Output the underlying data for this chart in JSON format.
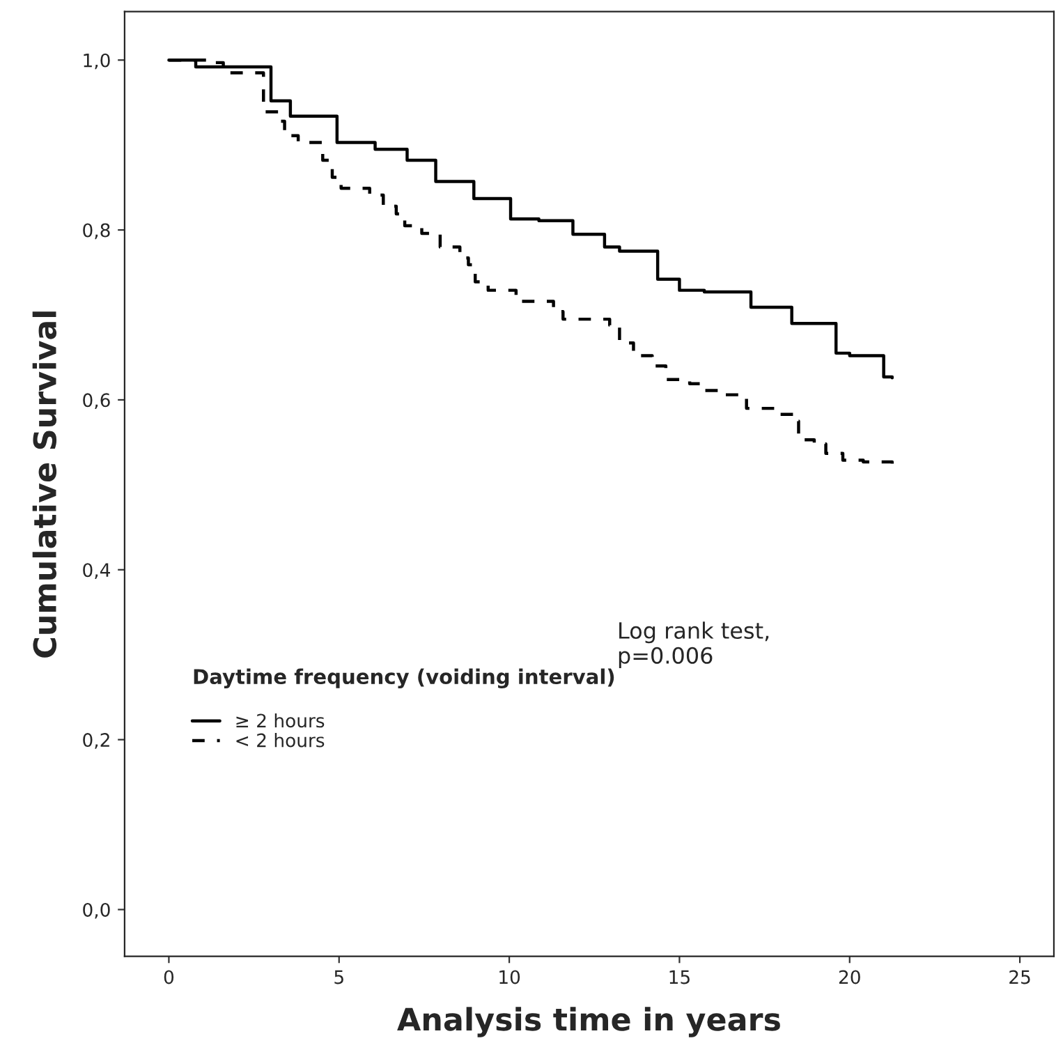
{
  "chart_data": {
    "type": "step",
    "xlabel": "Analysis time in years",
    "ylabel": "Cumulative Survival",
    "legend_title": "Daytime frequency (voiding interval)",
    "legend": "bottom left",
    "grid": false,
    "xlim": [
      -1.3,
      26.0
    ],
    "xticks": [
      0,
      5,
      10,
      15,
      20,
      25
    ],
    "ylim": [
      -0.055,
      1.057
    ],
    "yticks": [
      {
        "value": 0,
        "label": "0,0"
      },
      {
        "value": 0.2,
        "label": "0,2"
      },
      {
        "value": 0.4,
        "label": "0,4"
      },
      {
        "value": 0.6,
        "label": "0,6"
      },
      {
        "value": 0.8,
        "label": "0,8"
      },
      {
        "value": 1.0,
        "label": "1,0"
      }
    ],
    "annotations": [
      "Log rank test,\np=0.006"
    ],
    "series": [
      {
        "name": "≥ 2 hours",
        "color": "#000000",
        "line_style": "solid",
        "x": [
          0,
          0.79,
          3.0,
          3.57,
          4.94,
          6.06,
          7.0,
          7.84,
          8.96,
          10.04,
          10.87,
          11.87,
          12.8,
          13.24,
          14.36,
          15.0,
          15.73,
          17.1,
          18.3,
          19.6,
          20.0,
          21.0,
          21.25
        ],
        "values": [
          1.0,
          0.992,
          0.952,
          0.934,
          0.903,
          0.895,
          0.882,
          0.857,
          0.837,
          0.813,
          0.811,
          0.795,
          0.78,
          0.775,
          0.742,
          0.729,
          0.727,
          0.709,
          0.69,
          0.655,
          0.652,
          0.627,
          0.626
        ]
      },
      {
        "name": "< 2 hours",
        "color": "#000000",
        "line_style": "dashed",
        "x": [
          0,
          1.2,
          1.6,
          2.78,
          3.28,
          3.4,
          3.8,
          4.52,
          4.8,
          5.06,
          5.9,
          6.3,
          6.68,
          6.93,
          7.43,
          7.97,
          8.55,
          8.8,
          9.0,
          9.38,
          10.2,
          11.3,
          11.58,
          12.95,
          13.24,
          13.65,
          14.2,
          14.6,
          15.3,
          15.73,
          16.14,
          16.97,
          17.9,
          18.4,
          18.5,
          18.96,
          19.3,
          19.8,
          20.4,
          21.25
        ],
        "values": [
          1.0,
          0.997,
          0.985,
          0.939,
          0.928,
          0.911,
          0.903,
          0.882,
          0.862,
          0.849,
          0.841,
          0.828,
          0.819,
          0.805,
          0.796,
          0.78,
          0.767,
          0.759,
          0.739,
          0.729,
          0.716,
          0.704,
          0.695,
          0.688,
          0.667,
          0.652,
          0.64,
          0.624,
          0.619,
          0.611,
          0.606,
          0.59,
          0.583,
          0.575,
          0.553,
          0.548,
          0.537,
          0.529,
          0.527,
          0.52
        ]
      }
    ]
  }
}
